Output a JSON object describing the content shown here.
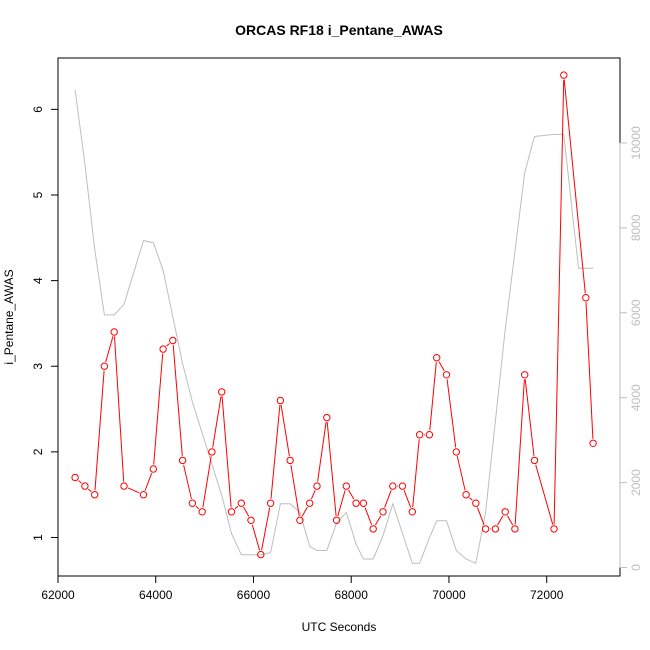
{
  "chart_data": {
    "type": "line",
    "title": "ORCAS RF18 i_Pentane_AWAS",
    "xlabel": "UTC Seconds",
    "ylabel": "i_Pentane_AWAS",
    "xlim": [
      62000,
      73500
    ],
    "ylim": [
      0.55,
      6.6
    ],
    "y2lim": [
      -200,
      12000
    ],
    "xticks": [
      "62000",
      "64000",
      "66000",
      "68000",
      "70000",
      "72000"
    ],
    "yticks": [
      "1",
      "2",
      "3",
      "4",
      "5",
      "6"
    ],
    "y2ticks": [
      "0",
      "2000",
      "4000",
      "6000",
      "8000",
      "10000"
    ],
    "colors": {
      "primary": "#ff0000",
      "secondary": "#bebebe",
      "axis": "#000000"
    },
    "series": [
      {
        "values": [
          [
            62350,
            1.7
          ],
          [
            62550,
            1.6
          ],
          [
            62750,
            1.5
          ],
          [
            62950,
            3.0
          ],
          [
            63150,
            3.4
          ],
          [
            63350,
            1.6
          ],
          [
            63750,
            1.5
          ],
          [
            63950,
            1.8
          ],
          [
            64150,
            3.2
          ],
          [
            64350,
            3.3
          ],
          [
            64550,
            1.9
          ],
          [
            64750,
            1.4
          ],
          [
            64950,
            1.3
          ],
          [
            65150,
            2.0
          ],
          [
            65350,
            2.7
          ],
          [
            65550,
            1.3
          ],
          [
            65750,
            1.4
          ],
          [
            65950,
            1.2
          ],
          [
            66150,
            0.8
          ],
          [
            66350,
            1.4
          ],
          [
            66550,
            2.6
          ],
          [
            66750,
            1.9
          ],
          [
            66950,
            1.2
          ],
          [
            67150,
            1.4
          ],
          [
            67300,
            1.6
          ],
          [
            67500,
            2.4
          ],
          [
            67700,
            1.2
          ],
          [
            67900,
            1.6
          ],
          [
            68100,
            1.4
          ],
          [
            68250,
            1.4
          ],
          [
            68450,
            1.1
          ],
          [
            68650,
            1.3
          ],
          [
            68850,
            1.6
          ],
          [
            69050,
            1.6
          ],
          [
            69250,
            1.3
          ],
          [
            69400,
            2.2
          ],
          [
            69600,
            2.2
          ],
          [
            69750,
            3.1
          ],
          [
            69950,
            2.9
          ],
          [
            70150,
            2.0
          ],
          [
            70350,
            1.5
          ],
          [
            70550,
            1.4
          ],
          [
            70750,
            1.1
          ],
          [
            70950,
            1.1
          ],
          [
            71150,
            1.3
          ],
          [
            71350,
            1.1
          ],
          [
            71550,
            2.9
          ],
          [
            71750,
            1.9
          ],
          [
            72150,
            1.1
          ],
          [
            72350,
            6.4
          ],
          [
            72800,
            3.8
          ],
          [
            72950,
            2.1
          ]
        ]
      },
      {
        "axis": "right",
        "values": [
          [
            62350,
            11250
          ],
          [
            62550,
            9500
          ],
          [
            62750,
            7500
          ],
          [
            62950,
            5950
          ],
          [
            63150,
            5950
          ],
          [
            63350,
            6200
          ],
          [
            63750,
            7700
          ],
          [
            63950,
            7650
          ],
          [
            64150,
            7000
          ],
          [
            64550,
            4800
          ],
          [
            64750,
            3900
          ],
          [
            65350,
            1700
          ],
          [
            65550,
            800
          ],
          [
            65750,
            300
          ],
          [
            66150,
            300
          ],
          [
            66350,
            350
          ],
          [
            66550,
            1500
          ],
          [
            66750,
            1500
          ],
          [
            66950,
            1300
          ],
          [
            67150,
            500
          ],
          [
            67300,
            400
          ],
          [
            67500,
            400
          ],
          [
            67700,
            1050
          ],
          [
            67900,
            1300
          ],
          [
            68100,
            550
          ],
          [
            68250,
            200
          ],
          [
            68450,
            200
          ],
          [
            68650,
            750
          ],
          [
            68850,
            1500
          ],
          [
            69050,
            800
          ],
          [
            69250,
            100
          ],
          [
            69400,
            100
          ],
          [
            69600,
            700
          ],
          [
            69750,
            1100
          ],
          [
            69950,
            1100
          ],
          [
            70150,
            400
          ],
          [
            70350,
            200
          ],
          [
            70550,
            100
          ],
          [
            70750,
            1300
          ],
          [
            71150,
            5600
          ],
          [
            71550,
            9300
          ],
          [
            71750,
            10150
          ],
          [
            72150,
            10200
          ],
          [
            72350,
            10200
          ],
          [
            72650,
            7050
          ],
          [
            72950,
            7050
          ]
        ]
      }
    ]
  }
}
